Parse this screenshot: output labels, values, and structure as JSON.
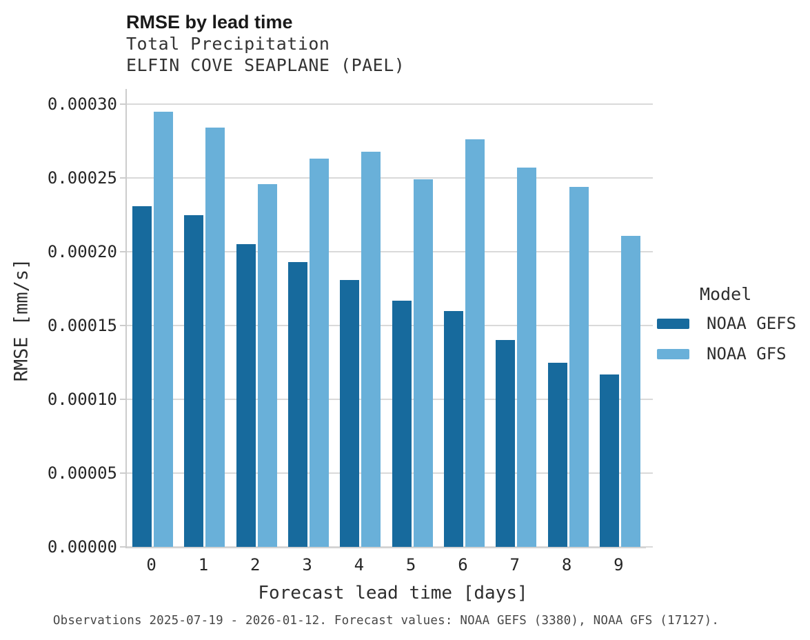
{
  "header": {
    "title": "RMSE by lead time",
    "subtitle_variable": "Total Precipitation",
    "subtitle_station": "ELFIN COVE SEAPLANE (PAEL)"
  },
  "caption": "Observations 2025-07-19 - 2026-01-12. Forecast values: NOAA GEFS (3380), NOAA GFS (17127).",
  "colors": {
    "noaa_gefs": "#176a9d",
    "noaa_gfs": "#69b0d9",
    "gridline": "#d9d9d9",
    "axis_line": "#cccccc"
  },
  "chart_data": {
    "type": "bar",
    "title": "RMSE by lead time",
    "subtitle": [
      "Total Precipitation",
      "ELFIN COVE SEAPLANE (PAEL)"
    ],
    "xlabel": "Forecast lead time [days]",
    "ylabel": "RMSE [mm/s]",
    "categories": [
      "0",
      "1",
      "2",
      "3",
      "4",
      "5",
      "6",
      "7",
      "8",
      "9"
    ],
    "series": [
      {
        "name": "NOAA GEFS",
        "color": "#176a9d",
        "values": [
          0.000231,
          0.000225,
          0.000205,
          0.000193,
          0.000181,
          0.000167,
          0.00016,
          0.00014,
          0.000125,
          0.000117
        ]
      },
      {
        "name": "NOAA GFS",
        "color": "#69b0d9",
        "values": [
          0.000295,
          0.000284,
          0.000246,
          0.000263,
          0.000268,
          0.000249,
          0.000276,
          0.000257,
          0.000244,
          0.000211
        ]
      }
    ],
    "ylim": [
      0,
      0.0003
    ],
    "ytick_values": [
      0.0,
      5e-05,
      0.0001,
      0.00015,
      0.0002,
      0.00025,
      0.0003
    ],
    "ytick_labels": [
      "0.00000",
      "0.00005",
      "0.00010",
      "0.00015",
      "0.00020",
      "0.00025",
      "0.00030"
    ],
    "grid": true,
    "legend_title": "Model",
    "legend_position": "right"
  }
}
